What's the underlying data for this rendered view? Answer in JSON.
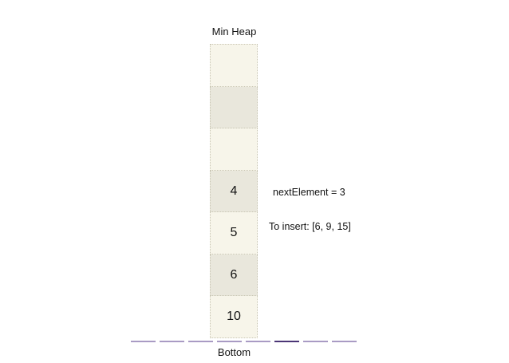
{
  "diagram": {
    "title": "Min Heap",
    "bottom_label": "Bottom",
    "cells": [
      {
        "value": "",
        "shade": "light"
      },
      {
        "value": "",
        "shade": "dark"
      },
      {
        "value": "",
        "shade": "light"
      },
      {
        "value": "4",
        "shade": "dark"
      },
      {
        "value": "5",
        "shade": "light"
      },
      {
        "value": "6",
        "shade": "dark"
      },
      {
        "value": "10",
        "shade": "light"
      }
    ],
    "next_element": "nextElement = 3",
    "to_insert": "To insert: [6, 9, 15]",
    "colors": {
      "cell_light": "#f7f5ea",
      "cell_dark": "#e9e7dc",
      "dash": "#a99bc4",
      "dash_active": "#4b3576"
    },
    "dashes": [
      {
        "active": false
      },
      {
        "active": false
      },
      {
        "active": false
      },
      {
        "active": false
      },
      {
        "active": false
      },
      {
        "active": true
      },
      {
        "active": false
      },
      {
        "active": false
      }
    ]
  }
}
